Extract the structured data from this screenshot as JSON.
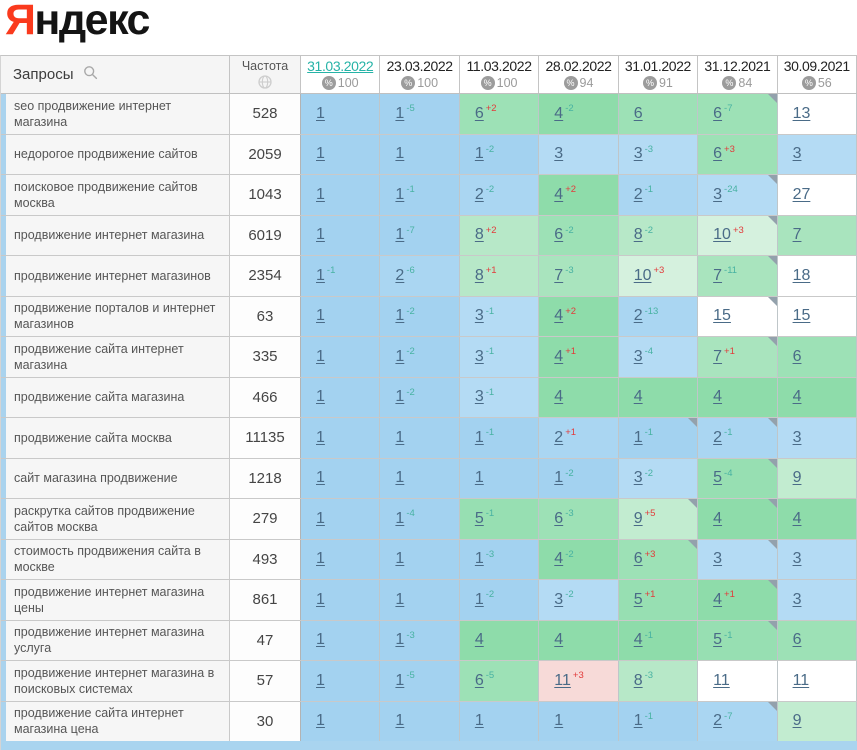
{
  "logo": {
    "first_letter": "Я",
    "rest": "ндекс"
  },
  "colors": {
    "brand_red": "#fa3a1d",
    "active_date_teal": "#26b3a7",
    "position_link": "#4a6b87",
    "diff_up_red": "#e23b3b",
    "diff_down_teal": "#48b2a2",
    "alert_pink": "#f7dad8",
    "row_stripe_blue": "#aad3ee",
    "positions": {
      "1": "#a3d2f0",
      "2": "#aad6f2",
      "3": "#b4dbf4",
      "4": "#8edcaa",
      "5": "#97dfb2",
      "6": "#9de1b6",
      "7": "#a9e4be",
      "8": "#b7e8c8",
      "9": "#c2ecd0",
      "10": "#d5f1de",
      "11plus": "#ffffff"
    }
  },
  "table": {
    "queries_header": "Запросы",
    "frequency_header": "Частота",
    "percent_symbol": "%",
    "columns": [
      {
        "date": "31.03.2022",
        "pct": "100",
        "active": true
      },
      {
        "date": "23.03.2022",
        "pct": "100",
        "active": false
      },
      {
        "date": "11.03.2022",
        "pct": "100",
        "active": false
      },
      {
        "date": "28.02.2022",
        "pct": "94",
        "active": false
      },
      {
        "date": "31.01.2022",
        "pct": "91",
        "active": false
      },
      {
        "date": "31.12.2021",
        "pct": "84",
        "active": false
      },
      {
        "date": "30.09.2021",
        "pct": "56",
        "active": false
      }
    ],
    "rows": [
      {
        "query": "seo продвижение интернет магазина",
        "freq": "528",
        "cells": [
          {
            "v": 1
          },
          {
            "v": 1,
            "d": -5
          },
          {
            "v": 6,
            "d": 2
          },
          {
            "v": 4,
            "d": -2
          },
          {
            "v": 6
          },
          {
            "v": 6,
            "d": -7,
            "tri": true
          },
          {
            "v": 13
          }
        ]
      },
      {
        "query": "недорогое продвижение сайтов",
        "freq": "2059",
        "cells": [
          {
            "v": 1
          },
          {
            "v": 1
          },
          {
            "v": 1,
            "d": -2
          },
          {
            "v": 3
          },
          {
            "v": 3,
            "d": -3
          },
          {
            "v": 6,
            "d": 3
          },
          {
            "v": 3
          }
        ]
      },
      {
        "query": "поисковое продвижение сайтов москва",
        "freq": "1043",
        "cells": [
          {
            "v": 1
          },
          {
            "v": 1,
            "d": -1
          },
          {
            "v": 2,
            "d": -2
          },
          {
            "v": 4,
            "d": 2
          },
          {
            "v": 2,
            "d": -1
          },
          {
            "v": 3,
            "d": -24,
            "tri": true
          },
          {
            "v": 27
          }
        ]
      },
      {
        "query": "продвижение интернет магазина",
        "freq": "6019",
        "cells": [
          {
            "v": 1
          },
          {
            "v": 1,
            "d": -7
          },
          {
            "v": 8,
            "d": 2
          },
          {
            "v": 6,
            "d": -2
          },
          {
            "v": 8,
            "d": -2
          },
          {
            "v": 10,
            "d": 3,
            "tri": true
          },
          {
            "v": 7
          }
        ]
      },
      {
        "query": "продвижение интернет магазинов",
        "freq": "2354",
        "cells": [
          {
            "v": 1,
            "d": -1
          },
          {
            "v": 2,
            "d": -6
          },
          {
            "v": 8,
            "d": 1
          },
          {
            "v": 7,
            "d": -3
          },
          {
            "v": 10,
            "d": 3
          },
          {
            "v": 7,
            "d": -11,
            "tri": true
          },
          {
            "v": 18
          }
        ]
      },
      {
        "query": "продвижение порталов и интернет магазинов",
        "freq": "63",
        "cells": [
          {
            "v": 1
          },
          {
            "v": 1,
            "d": -2
          },
          {
            "v": 3,
            "d": -1
          },
          {
            "v": 4,
            "d": 2
          },
          {
            "v": 2,
            "d": -13
          },
          {
            "v": 15,
            "tri": true
          },
          {
            "v": 15
          }
        ]
      },
      {
        "query": "продвижение сайта интернет магазина",
        "freq": "335",
        "cells": [
          {
            "v": 1
          },
          {
            "v": 1,
            "d": -2
          },
          {
            "v": 3,
            "d": -1
          },
          {
            "v": 4,
            "d": 1
          },
          {
            "v": 3,
            "d": -4
          },
          {
            "v": 7,
            "d": 1,
            "tri": true
          },
          {
            "v": 6
          }
        ]
      },
      {
        "query": "продвижение сайта магазина",
        "freq": "466",
        "cells": [
          {
            "v": 1
          },
          {
            "v": 1,
            "d": -2
          },
          {
            "v": 3,
            "d": -1
          },
          {
            "v": 4
          },
          {
            "v": 4
          },
          {
            "v": 4
          },
          {
            "v": 4
          }
        ]
      },
      {
        "query": "продвижение сайта москва",
        "freq": "11135",
        "cells": [
          {
            "v": 1
          },
          {
            "v": 1
          },
          {
            "v": 1,
            "d": -1
          },
          {
            "v": 2,
            "d": 1
          },
          {
            "v": 1,
            "d": -1,
            "tri": true
          },
          {
            "v": 2,
            "d": -1,
            "tri": true
          },
          {
            "v": 3
          }
        ]
      },
      {
        "query": "сайт магазина продвижение",
        "freq": "1218",
        "cells": [
          {
            "v": 1
          },
          {
            "v": 1
          },
          {
            "v": 1
          },
          {
            "v": 1,
            "d": -2
          },
          {
            "v": 3,
            "d": -2
          },
          {
            "v": 5,
            "d": -4,
            "tri": true
          },
          {
            "v": 9
          }
        ]
      },
      {
        "query": "раскрутка сайтов продвижение сайтов москва",
        "freq": "279",
        "cells": [
          {
            "v": 1
          },
          {
            "v": 1,
            "d": -4
          },
          {
            "v": 5,
            "d": -1
          },
          {
            "v": 6,
            "d": -3
          },
          {
            "v": 9,
            "d": 5,
            "tri": true
          },
          {
            "v": 4,
            "tri": true
          },
          {
            "v": 4
          }
        ]
      },
      {
        "query": "стоимость продвижения сайта в москве",
        "freq": "493",
        "cells": [
          {
            "v": 1
          },
          {
            "v": 1
          },
          {
            "v": 1,
            "d": -3
          },
          {
            "v": 4,
            "d": -2
          },
          {
            "v": 6,
            "d": 3,
            "tri": true
          },
          {
            "v": 3,
            "tri": true
          },
          {
            "v": 3
          }
        ]
      },
      {
        "query": "продвижение интернет магазина цены",
        "freq": "861",
        "cells": [
          {
            "v": 1
          },
          {
            "v": 1
          },
          {
            "v": 1,
            "d": -2
          },
          {
            "v": 3,
            "d": -2
          },
          {
            "v": 5,
            "d": 1
          },
          {
            "v": 4,
            "d": 1,
            "tri": true
          },
          {
            "v": 3
          }
        ]
      },
      {
        "query": "продвижение интернет магазина услуга",
        "freq": "47",
        "cells": [
          {
            "v": 1
          },
          {
            "v": 1,
            "d": -3
          },
          {
            "v": 4
          },
          {
            "v": 4
          },
          {
            "v": 4,
            "d": -1
          },
          {
            "v": 5,
            "d": -1,
            "tri": true
          },
          {
            "v": 6
          }
        ]
      },
      {
        "query": "продвижение интернет магазина в поисковых системах",
        "freq": "57",
        "cells": [
          {
            "v": 1
          },
          {
            "v": 1,
            "d": -5
          },
          {
            "v": 6,
            "d": -5
          },
          {
            "v": 11,
            "d": 3,
            "pink": true
          },
          {
            "v": 8,
            "d": -3
          },
          {
            "v": 11
          },
          {
            "v": 11
          }
        ]
      },
      {
        "query": "продвижение сайта интернет магазина цена",
        "freq": "30",
        "cells": [
          {
            "v": 1
          },
          {
            "v": 1
          },
          {
            "v": 1
          },
          {
            "v": 1
          },
          {
            "v": 1,
            "d": -1
          },
          {
            "v": 2,
            "d": -7,
            "tri": true
          },
          {
            "v": 9
          }
        ]
      }
    ]
  }
}
